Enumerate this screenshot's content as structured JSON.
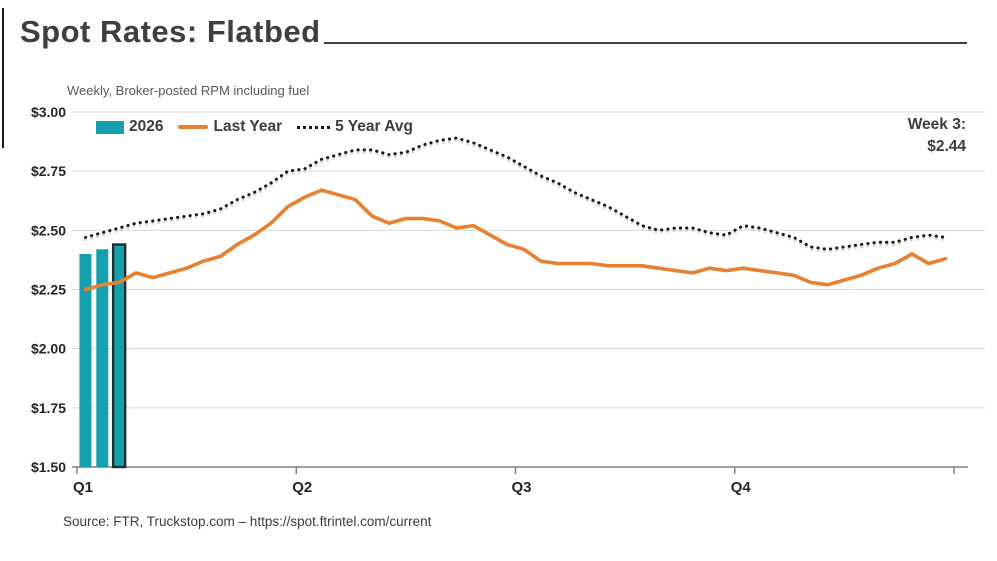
{
  "header": {
    "title": "Spot Rates: Flatbed",
    "subtitle": "Weekly, Broker-posted RPM including fuel"
  },
  "legend": {
    "items": [
      {
        "label": "2026",
        "swatch": "bar"
      },
      {
        "label": "Last Year",
        "swatch": "line"
      },
      {
        "label": "5 Year Avg",
        "swatch": "dots"
      }
    ]
  },
  "footer": {
    "source": "Source: FTR, Truckstop.com – https://spot.ftrintel.com/current"
  },
  "colors": {
    "teal": "#16A0AD",
    "bar_outline": "#1B2D36",
    "orange": "#E8802F",
    "dotted": "#1A1A1A",
    "dotted_shadow": "#C9C9C9",
    "grid": "#D9D9D9",
    "axis": "#808080",
    "text_dark": "#3F3F3F"
  },
  "chart_data": {
    "type": "bar",
    "title": "Spot Rates: Flatbed",
    "subtitle": "Weekly, Broker-posted RPM including fuel",
    "note": "bar series (current year weekly) combined with two 52-week line series",
    "x_axis": {
      "tick_labels": [
        "Q1",
        "Q2",
        "Q3",
        "Q4"
      ],
      "weeks_per_quarter": 13,
      "total_weeks": 52
    },
    "y_axis": {
      "tick_labels": [
        "$3.00",
        "$2.75",
        "$2.50",
        "$2.25",
        "$2.00",
        "$1.75",
        "$1.50"
      ],
      "min": 1.5,
      "max": 3.0,
      "step": 0.25,
      "grid": true
    },
    "annotation": {
      "week_label": "Week 3:",
      "value": "$2.44"
    },
    "series": [
      {
        "name": "2026",
        "type": "bar",
        "weeks": [
          1,
          2,
          3
        ],
        "values": [
          2.4,
          2.42,
          2.44
        ],
        "highlight_last_bar": true
      },
      {
        "name": "Last Year",
        "type": "line",
        "values": [
          2.25,
          2.27,
          2.28,
          2.32,
          2.3,
          2.32,
          2.34,
          2.37,
          2.39,
          2.44,
          2.48,
          2.53,
          2.6,
          2.64,
          2.67,
          2.65,
          2.63,
          2.56,
          2.53,
          2.55,
          2.55,
          2.54,
          2.51,
          2.52,
          2.48,
          2.44,
          2.42,
          2.37,
          2.36,
          2.36,
          2.36,
          2.35,
          2.35,
          2.35,
          2.34,
          2.33,
          2.32,
          2.34,
          2.33,
          2.34,
          2.33,
          2.32,
          2.31,
          2.28,
          2.27,
          2.29,
          2.31,
          2.34,
          2.36,
          2.4,
          2.36,
          2.38
        ]
      },
      {
        "name": "5 Year Avg",
        "type": "dotted-line",
        "values": [
          2.47,
          2.49,
          2.51,
          2.53,
          2.54,
          2.55,
          2.56,
          2.57,
          2.59,
          2.63,
          2.66,
          2.7,
          2.75,
          2.76,
          2.8,
          2.82,
          2.84,
          2.84,
          2.82,
          2.83,
          2.86,
          2.88,
          2.89,
          2.87,
          2.84,
          2.81,
          2.77,
          2.73,
          2.7,
          2.66,
          2.63,
          2.6,
          2.56,
          2.52,
          2.5,
          2.51,
          2.51,
          2.49,
          2.48,
          2.52,
          2.51,
          2.49,
          2.47,
          2.43,
          2.42,
          2.43,
          2.44,
          2.45,
          2.45,
          2.47,
          2.48,
          2.47
        ]
      }
    ]
  }
}
